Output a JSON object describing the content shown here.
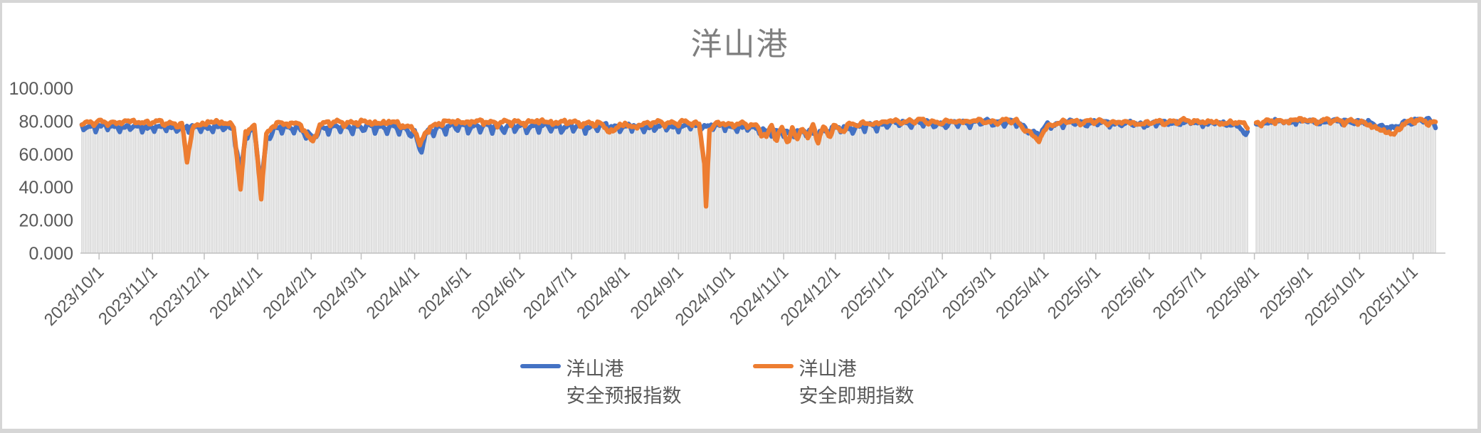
{
  "chart_data": {
    "type": "line",
    "title": "洋山港",
    "ylabel": "",
    "xlabel": "",
    "ylim": [
      0,
      100
    ],
    "grid": false,
    "legend_position": "bottom",
    "y_ticks": [
      {
        "value": 0,
        "label": "0.000"
      },
      {
        "value": 20,
        "label": "20.000"
      },
      {
        "value": 40,
        "label": "40.000"
      },
      {
        "value": 60,
        "label": "60.000"
      },
      {
        "value": 80,
        "label": "80.000"
      },
      {
        "value": 100,
        "label": "100.000"
      }
    ],
    "x_ticks": [
      {
        "label": "2023/10/1",
        "day": 10
      },
      {
        "label": "2023/11/1",
        "day": 41
      },
      {
        "label": "2023/12/1",
        "day": 71
      },
      {
        "label": "2024/1/1",
        "day": 102
      },
      {
        "label": "2024/2/1",
        "day": 133
      },
      {
        "label": "2024/3/1",
        "day": 162
      },
      {
        "label": "2024/4/1",
        "day": 193
      },
      {
        "label": "2024/5/1",
        "day": 223
      },
      {
        "label": "2024/6/1",
        "day": 254
      },
      {
        "label": "2024/7/1",
        "day": 284
      },
      {
        "label": "2024/8/1",
        "day": 315
      },
      {
        "label": "2024/9/1",
        "day": 346
      },
      {
        "label": "2024/10/1",
        "day": 376
      },
      {
        "label": "2024/11/1",
        "day": 407
      },
      {
        "label": "2024/12/1",
        "day": 437
      },
      {
        "label": "2025/1/1",
        "day": 468
      },
      {
        "label": "2025/2/1",
        "day": 499
      },
      {
        "label": "2025/3/1",
        "day": 527
      },
      {
        "label": "2025/4/1",
        "day": 558
      },
      {
        "label": "2025/5/1",
        "day": 588
      },
      {
        "label": "2025/6/1",
        "day": 619
      },
      {
        "label": "2025/7/1",
        "day": 649
      },
      {
        "label": "2025/8/1",
        "day": 680
      },
      {
        "label": "2025/9/1",
        "day": 711
      },
      {
        "label": "2025/10/1",
        "day": 741
      },
      {
        "label": "2025/11/1",
        "day": 772
      }
    ],
    "days_total": 786,
    "data_gaps": [
      [
        677,
        680
      ]
    ],
    "value_cap": 83.2,
    "background_bars": {
      "color": "#d9d9d9",
      "offset_below_lines": 0.7
    },
    "texture": {
      "smooth_amp": [
        0.6,
        0.5,
        0.4
      ],
      "smooth_freq": [
        0.91,
        0.37,
        2.33
      ],
      "tooth_power": 4
    },
    "series": [
      {
        "id": "forecast",
        "name": "洋山港\n安全预报指数",
        "color": "#4472c4",
        "tooth_freq": 0.93,
        "tooth_phase": 0.3,
        "smooth_seed": 1.3,
        "tooth_depth_anchors": [
          [
            0,
            4.2
          ],
          [
            460,
            4.2
          ],
          [
            470,
            2.4
          ],
          [
            785,
            2.4
          ]
        ],
        "anchors": [
          [
            0,
            77.5
          ],
          [
            15,
            77.5
          ],
          [
            30,
            77
          ],
          [
            45,
            77
          ],
          [
            61,
            76.5
          ],
          [
            75,
            77
          ],
          [
            88,
            76.5
          ],
          [
            92,
            48
          ],
          [
            95,
            72
          ],
          [
            100,
            75
          ],
          [
            104,
            42
          ],
          [
            107,
            70
          ],
          [
            112,
            76
          ],
          [
            125,
            77
          ],
          [
            134,
            70
          ],
          [
            138,
            76.5
          ],
          [
            150,
            77
          ],
          [
            165,
            77
          ],
          [
            180,
            77
          ],
          [
            193,
            74
          ],
          [
            196,
            63
          ],
          [
            200,
            73
          ],
          [
            207,
            77
          ],
          [
            225,
            77.5
          ],
          [
            245,
            77
          ],
          [
            265,
            77.5
          ],
          [
            285,
            77
          ],
          [
            305,
            77.5
          ],
          [
            325,
            77
          ],
          [
            345,
            77.5
          ],
          [
            362,
            78
          ],
          [
            375,
            77.5
          ],
          [
            390,
            76.5
          ],
          [
            397,
            75
          ],
          [
            403,
            74
          ],
          [
            410,
            73.5
          ],
          [
            417,
            74.5
          ],
          [
            424,
            73
          ],
          [
            430,
            74.5
          ],
          [
            436,
            76
          ],
          [
            445,
            76.5
          ],
          [
            455,
            77.5
          ],
          [
            468,
            79
          ],
          [
            485,
            79.5
          ],
          [
            500,
            78.5
          ],
          [
            512,
            79.5
          ],
          [
            527,
            80
          ],
          [
            542,
            79.5
          ],
          [
            555,
            71.5
          ],
          [
            560,
            78
          ],
          [
            572,
            79.5
          ],
          [
            588,
            79.5
          ],
          [
            602,
            79
          ],
          [
            616,
            78.5
          ],
          [
            630,
            79.5
          ],
          [
            645,
            79.5
          ],
          [
            660,
            79
          ],
          [
            670,
            78.5
          ],
          [
            675,
            71.5
          ],
          [
            677,
            74
          ],
          [
            681,
            78.5
          ],
          [
            690,
            80
          ],
          [
            705,
            80.5
          ],
          [
            720,
            80
          ],
          [
            735,
            80.5
          ],
          [
            748,
            79
          ],
          [
            755,
            77
          ],
          [
            761,
            75.5
          ],
          [
            766,
            79.5
          ],
          [
            772,
            80.5
          ],
          [
            780,
            81
          ],
          [
            785,
            79.5
          ]
        ]
      },
      {
        "id": "spot",
        "name": "洋山港\n安全即期指数",
        "color": "#ed7d31",
        "tooth_freq": 0.78,
        "tooth_phase": 2.1,
        "smooth_seed": 4.7,
        "tooth_depth_anchors": [
          [
            0,
            2.0
          ],
          [
            390,
            2.0
          ],
          [
            397,
            3.5
          ],
          [
            436,
            3.5
          ],
          [
            445,
            1.8
          ],
          [
            785,
            1.8
          ]
        ],
        "anchors": [
          [
            0,
            79.5
          ],
          [
            15,
            79.5
          ],
          [
            30,
            80
          ],
          [
            45,
            79.5
          ],
          [
            58,
            78.5
          ],
          [
            61,
            55
          ],
          [
            64,
            76
          ],
          [
            70,
            79.5
          ],
          [
            80,
            79.5
          ],
          [
            88,
            78.5
          ],
          [
            92,
            38
          ],
          [
            95,
            74
          ],
          [
            100,
            77
          ],
          [
            104,
            36
          ],
          [
            107,
            72
          ],
          [
            112,
            78.5
          ],
          [
            125,
            79.5
          ],
          [
            134,
            67.5
          ],
          [
            138,
            79
          ],
          [
            150,
            79.5
          ],
          [
            165,
            79.5
          ],
          [
            180,
            79.5
          ],
          [
            193,
            76
          ],
          [
            196,
            64.5
          ],
          [
            200,
            75
          ],
          [
            207,
            79.5
          ],
          [
            225,
            80
          ],
          [
            245,
            79.5
          ],
          [
            265,
            80
          ],
          [
            285,
            79.5
          ],
          [
            300,
            78.5
          ],
          [
            308,
            74
          ],
          [
            312,
            78.5
          ],
          [
            320,
            76.5
          ],
          [
            325,
            79
          ],
          [
            345,
            79.5
          ],
          [
            358,
            79
          ],
          [
            361,
            55
          ],
          [
            362,
            30
          ],
          [
            364,
            74
          ],
          [
            368,
            79
          ],
          [
            380,
            78.5
          ],
          [
            392,
            77.5
          ],
          [
            397,
            70
          ],
          [
            400,
            78
          ],
          [
            403,
            69
          ],
          [
            406,
            77
          ],
          [
            409,
            68.5
          ],
          [
            412,
            76
          ],
          [
            415,
            69
          ],
          [
            418,
            77
          ],
          [
            421,
            70
          ],
          [
            424,
            78
          ],
          [
            427,
            69.5
          ],
          [
            430,
            77
          ],
          [
            433,
            71
          ],
          [
            436,
            77.5
          ],
          [
            440,
            74
          ],
          [
            444,
            78.5
          ],
          [
            450,
            78
          ],
          [
            457,
            79
          ],
          [
            468,
            80
          ],
          [
            485,
            80.5
          ],
          [
            500,
            79.5
          ],
          [
            512,
            80.5
          ],
          [
            527,
            80
          ],
          [
            542,
            80.5
          ],
          [
            555,
            68
          ],
          [
            560,
            78
          ],
          [
            572,
            80
          ],
          [
            588,
            80
          ],
          [
            602,
            79.5
          ],
          [
            616,
            79
          ],
          [
            630,
            80
          ],
          [
            645,
            80.5
          ],
          [
            660,
            79
          ],
          [
            668,
            80
          ],
          [
            675,
            77.5
          ],
          [
            677,
            78
          ],
          [
            681,
            79.5
          ],
          [
            690,
            80
          ],
          [
            705,
            81
          ],
          [
            720,
            80.5
          ],
          [
            735,
            80.5
          ],
          [
            748,
            78
          ],
          [
            755,
            74
          ],
          [
            761,
            72
          ],
          [
            766,
            79
          ],
          [
            772,
            80.5
          ],
          [
            780,
            80
          ],
          [
            785,
            79.5
          ]
        ]
      }
    ],
    "axis_color": "#bfbfbf",
    "title_color": "#7f7f7f",
    "label_color": "#595959"
  }
}
